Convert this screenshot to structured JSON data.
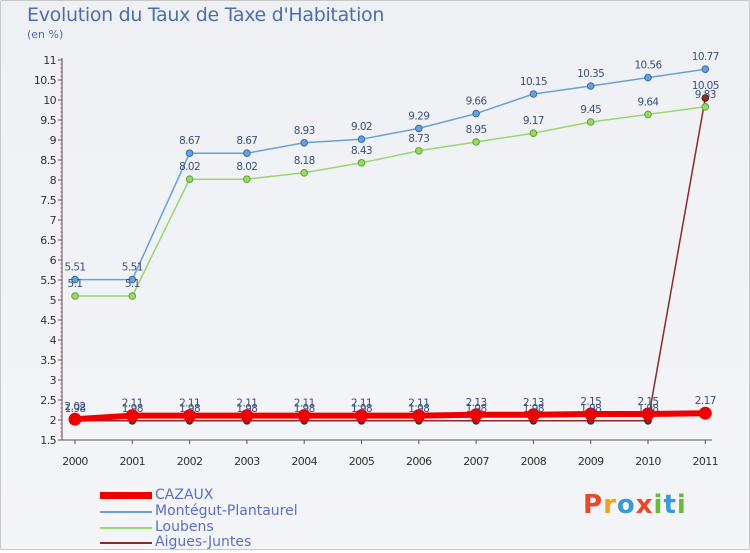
{
  "header": {
    "title": "Evolution du Taux de Taxe d'Habitation",
    "unit": "(en %)"
  },
  "logo": {
    "text": "Proxiti",
    "colors": [
      "#e8472a",
      "#f2a01f",
      "#3a9ad9",
      "#e8472a",
      "#6cb83a",
      "#3a9ad9",
      "#6cb83a"
    ]
  },
  "chart_data": {
    "type": "line",
    "x": [
      "2000",
      "2001",
      "2002",
      "2003",
      "2004",
      "2005",
      "2006",
      "2007",
      "2008",
      "2009",
      "2010",
      "2011"
    ],
    "ylim": [
      1.5,
      11
    ],
    "yticks": [
      "1.5",
      "2",
      "2.5",
      "3",
      "3.5",
      "4",
      "4.5",
      "5",
      "5.5",
      "6",
      "6.5",
      "7",
      "7.5",
      "8",
      "8.5",
      "9",
      "9.5",
      "10",
      "10.5",
      "11"
    ],
    "grid": false,
    "legend_position": "bottom-left",
    "series": [
      {
        "name": "CAZAUX",
        "color": "#ee0000",
        "values": [
          2.02,
          2.11,
          2.11,
          2.11,
          2.11,
          2.11,
          2.11,
          2.13,
          2.13,
          2.15,
          2.15,
          2.17
        ],
        "labels": [
          "2.02",
          "2.11",
          "2.11",
          "2.11",
          "2.11",
          "2.11",
          "2.11",
          "2.13",
          "2.13",
          "2.15",
          "2.15",
          "2.17"
        ]
      },
      {
        "name": "Montégut-Plantaurel",
        "color": "#6aa0d6",
        "values": [
          5.51,
          5.51,
          8.67,
          8.67,
          8.93,
          9.02,
          9.29,
          9.66,
          10.15,
          10.35,
          10.56,
          10.77
        ],
        "labels": [
          "5.51",
          "5.51",
          "8.67",
          "8.67",
          "8.93",
          "9.02",
          "9.29",
          "9.66",
          "10.15",
          "10.35",
          "10.56",
          "10.77"
        ]
      },
      {
        "name": "Loubens",
        "color": "#9bd66a",
        "values": [
          5.1,
          5.1,
          8.02,
          8.02,
          8.18,
          8.43,
          8.73,
          8.95,
          9.17,
          9.45,
          9.64,
          9.83
        ],
        "labels": [
          "5.1",
          "5.1",
          "8.02",
          "8.02",
          "8.18",
          "8.43",
          "8.73",
          "8.95",
          "9.17",
          "9.45",
          "9.64",
          "9.83"
        ]
      },
      {
        "name": "Aigues-Juntes",
        "color": "#8b2a2a",
        "values": [
          1.98,
          1.98,
          1.98,
          1.98,
          1.98,
          1.98,
          1.98,
          1.98,
          1.98,
          1.98,
          1.98,
          10.05
        ],
        "labels": [
          "1.98",
          "1.98",
          "1.98",
          "1.98",
          "1.98",
          "1.98",
          "1.98",
          "1.98",
          "1.98",
          "1.98",
          "1.98",
          "10.05"
        ]
      }
    ]
  }
}
